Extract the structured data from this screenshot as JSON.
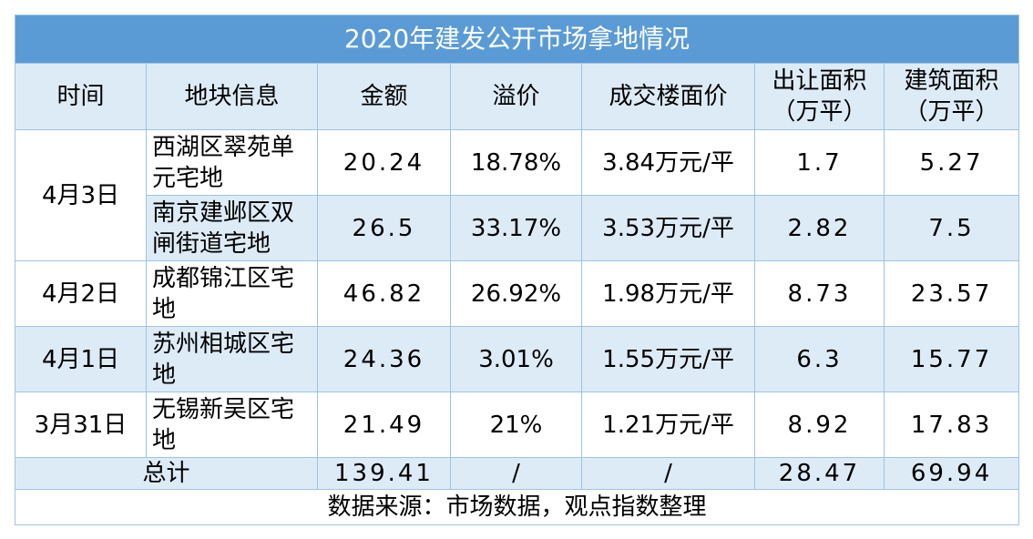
{
  "title": "2020年建发公开市场拿地情况",
  "headers": {
    "time": "时间",
    "parcel": "地块信息",
    "amount": "金额",
    "premium": "溢价",
    "price": "成交楼面价",
    "land_area": "出让面积（万平）",
    "building_area": "建筑面积（万平）"
  },
  "rows": [
    {
      "date": "4月3日",
      "parcel": "西湖区翠苑单元宅地",
      "amount": "20.24",
      "premium": "18.78%",
      "price": "3.84万元/平",
      "land_area": "1.7",
      "building_area": "5.27"
    },
    {
      "date": "4月3日",
      "parcel": "南京建邺区双闸街道宅地",
      "amount": "26.5",
      "premium": "33.17%",
      "price": "3.53万元/平",
      "land_area": "2.82",
      "building_area": "7.5"
    },
    {
      "date": "4月2日",
      "parcel": "成都锦江区宅地",
      "amount": "46.82",
      "premium": "26.92%",
      "price": "1.98万元/平",
      "land_area": "8.73",
      "building_area": "23.57"
    },
    {
      "date": "4月1日",
      "parcel": "苏州相城区宅地",
      "amount": "24.36",
      "premium": "3.01%",
      "price": "1.55万元/平",
      "land_area": "6.3",
      "building_area": "15.77"
    },
    {
      "date": "3月31日",
      "parcel": "无锡新吴区宅地",
      "amount": "21.49",
      "premium": "21%",
      "price": "1.21万元/平",
      "land_area": "8.92",
      "building_area": "17.83"
    }
  ],
  "total": {
    "label": "总计",
    "amount": "139.41",
    "premium": "/",
    "price": "/",
    "land_area": "28.47",
    "building_area": "69.94"
  },
  "source": "数据来源：市场数据，观点指数整理",
  "colors": {
    "title_bg": "#5B9BD5",
    "header_bg": "#DDEBF7",
    "border": "#9DC3E6"
  }
}
